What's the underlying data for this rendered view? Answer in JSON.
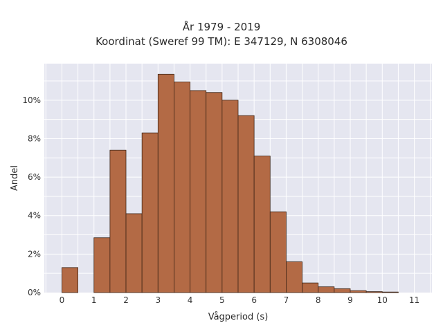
{
  "chart_data": {
    "type": "bar",
    "title": "År 1979 - 2019",
    "subtitle": "Koordinat (Sweref 99 TM): E 347129, N 6308046",
    "xlabel": "Vågperiod (s)",
    "ylabel": "Andel",
    "bin_width": 0.5,
    "x": [
      0,
      0.5,
      1,
      1.5,
      2,
      2.5,
      3,
      3.5,
      4,
      4.5,
      5,
      5.5,
      6,
      6.5,
      7,
      7.5,
      8,
      8.5,
      9,
      9.5,
      10,
      10.5
    ],
    "values": [
      1.3,
      0,
      2.85,
      7.4,
      4.1,
      8.3,
      11.35,
      10.95,
      10.5,
      10.4,
      10.0,
      9.2,
      7.1,
      4.2,
      1.6,
      0.5,
      0.3,
      0.2,
      0.1,
      0.05,
      0.03,
      0
    ],
    "xlim": [
      -0.55,
      11.55
    ],
    "ylim": [
      0,
      11.9
    ],
    "xticks": [
      0,
      1,
      2,
      3,
      4,
      5,
      6,
      7,
      8,
      9,
      10,
      11
    ],
    "xtick_labels": [
      "0",
      "1",
      "2",
      "3",
      "4",
      "5",
      "6",
      "7",
      "8",
      "9",
      "10",
      "11"
    ],
    "yticks": [
      0,
      2,
      4,
      6,
      8,
      10
    ],
    "ytick_labels": [
      "0%",
      "2%",
      "4%",
      "6%",
      "8%",
      "10%"
    ],
    "grid": true,
    "colors": {
      "bar_fill": "#b36a45",
      "bar_stroke": "#3d2416",
      "plot_bg": "#e5e6f0",
      "grid": "#ffffff"
    }
  }
}
